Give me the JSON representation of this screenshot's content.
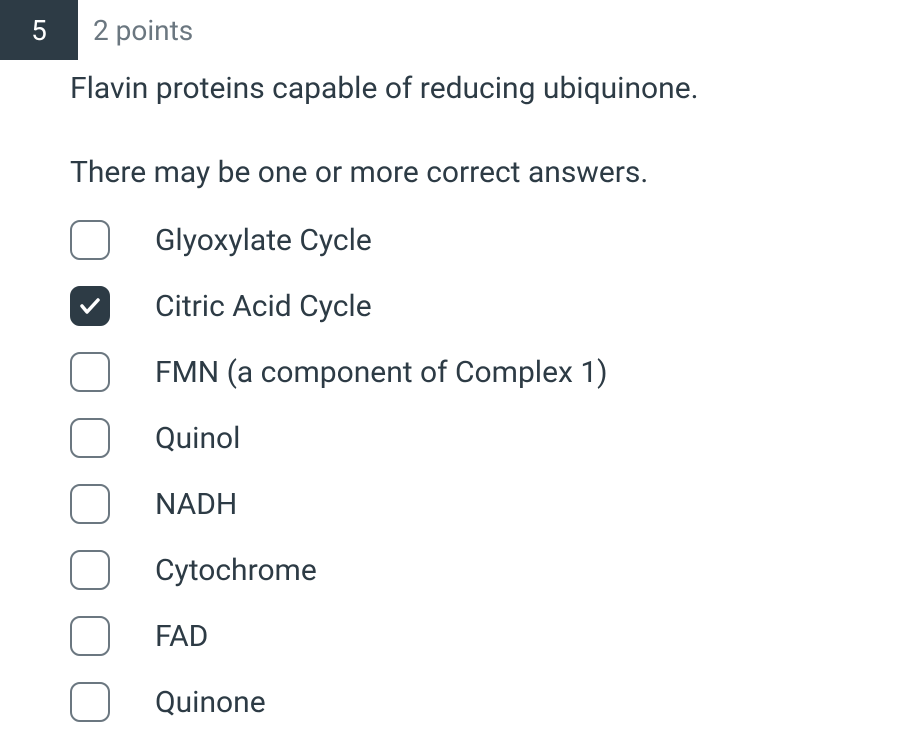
{
  "question": {
    "number": "5",
    "points": "2 points",
    "text": "Flavin proteins capable of reducing ubiquinone.",
    "hint": "There may be one or more correct answers."
  },
  "options": [
    {
      "label": "Glyoxylate Cycle",
      "checked": false
    },
    {
      "label": "Citric Acid Cycle",
      "checked": true
    },
    {
      "label": "FMN (a component of Complex 1)",
      "checked": false
    },
    {
      "label": "Quinol",
      "checked": false
    },
    {
      "label": "NADH",
      "checked": false
    },
    {
      "label": "Cytochrome",
      "checked": false
    },
    {
      "label": "FAD",
      "checked": false
    },
    {
      "label": "Quinone",
      "checked": false
    }
  ],
  "colors": {
    "header_bg": "#2d3b45",
    "header_text": "#ffffff",
    "points_text": "#6b7780",
    "body_text": "#2d3b45",
    "checkbox_border": "#6b7780",
    "checkbox_checked_bg": "#2d3b45",
    "checkmark": "#ffffff"
  }
}
